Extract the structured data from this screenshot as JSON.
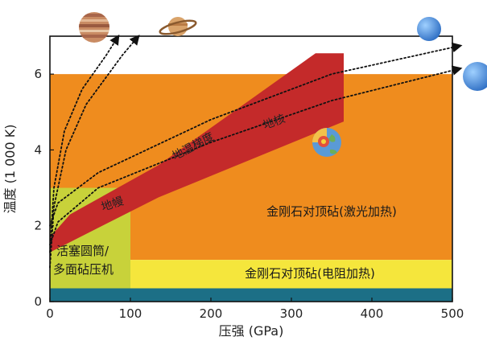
{
  "chart_data": {
    "type": "area",
    "xlabel": "压强 (GPa)",
    "ylabel": "温度 (1 000 K)",
    "xlim": [
      0,
      500
    ],
    "ylim": [
      0,
      7
    ],
    "xticks": [
      0,
      100,
      200,
      300,
      400,
      500
    ],
    "yticks": [
      0,
      2,
      4,
      6
    ],
    "grid": false,
    "regions": [
      {
        "label": "",
        "x": [
          0,
          500
        ],
        "y": [
          0,
          0.35
        ],
        "color": "#1c6f86"
      },
      {
        "label": "金刚石对顶砧(激光加热)",
        "x": [
          0,
          500
        ],
        "y": [
          1.1,
          6.0
        ],
        "color": "#ef8c1e"
      },
      {
        "label": "金刚石对顶砧(电阻加热)",
        "x": [
          0,
          500
        ],
        "y": [
          0.35,
          1.1
        ],
        "color": "#f5e63c"
      },
      {
        "label": "活塞圆筒/多面砧压机",
        "x": [
          0,
          100
        ],
        "y": [
          0.35,
          3.0
        ],
        "color": "#c8d23a"
      }
    ],
    "geotherm": {
      "color": "#c42a2a",
      "upper": [
        [
          0,
          1.7
        ],
        [
          25,
          2.3
        ],
        [
          135,
          3.6
        ],
        [
          330,
          6.55
        ],
        [
          365,
          6.55
        ]
      ],
      "lower": [
        [
          0,
          1.3
        ],
        [
          135,
          2.75
        ],
        [
          365,
          4.75
        ]
      ],
      "labels": [
        "地幔",
        "地温梯度",
        "地核"
      ]
    },
    "paths": [
      {
        "name": "saturn",
        "x": [
          0,
          5,
          20,
          45,
          90,
          110
        ],
        "y": [
          0.9,
          2.5,
          4.0,
          5.2,
          6.5,
          7.0
        ]
      },
      {
        "name": "jupiter",
        "x": [
          0,
          5,
          18,
          40,
          70,
          85
        ],
        "y": [
          1.3,
          3.0,
          4.5,
          5.6,
          6.5,
          7.0
        ]
      },
      {
        "name": "exoplanet_1",
        "x": [
          0,
          10,
          60,
          200,
          350,
          510
        ],
        "y": [
          2.0,
          2.6,
          3.4,
          4.8,
          6.0,
          6.75
        ]
      },
      {
        "name": "exoplanet_2",
        "x": [
          0,
          10,
          60,
          200,
          350,
          510
        ],
        "y": [
          1.5,
          2.1,
          3.0,
          4.2,
          5.3,
          6.15
        ]
      }
    ]
  },
  "colors": {
    "teal": "#1c6f86",
    "orange": "#ef8c1e",
    "yellow": "#f5e63c",
    "olive": "#c8d23a",
    "red": "#c42a2a",
    "blue": "#3a86d6"
  },
  "icons": [
    "jupiter-icon",
    "saturn-icon",
    "blue-planet-icon",
    "earth-cutaway-icon"
  ]
}
